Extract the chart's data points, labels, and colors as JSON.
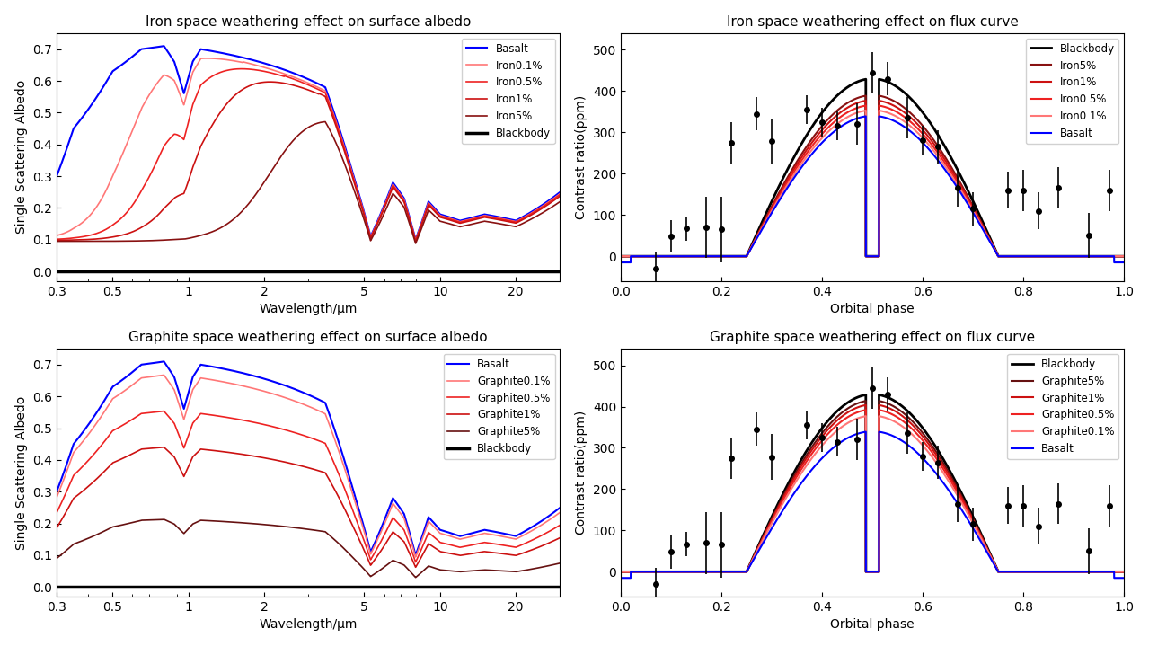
{
  "title_iron_albedo": "Iron space weathering effect on surface albedo",
  "title_iron_flux": "Iron space weathering effect on flux curve",
  "title_graphite_albedo": "Graphite space weathering effect on surface albedo",
  "title_graphite_flux": "Graphite space weathering effect on flux curve",
  "ylabel_albedo": "Single Scattering Albedo",
  "ylabel_flux": "Contrast ratio(ppm)",
  "xlabel_albedo": "Wavelength/μm",
  "xlabel_flux": "Orbital phase",
  "basalt_color": "#0000ff",
  "blackbody_color": "#000000",
  "iron_colors": [
    "#ff7777",
    "#ee2222",
    "#cc1111",
    "#881111"
  ],
  "graphite_colors": [
    "#ff7777",
    "#ee2222",
    "#cc1111",
    "#661111"
  ],
  "iron_labels_albedo": [
    "Basalt",
    "Iron0.1%",
    "Iron0.5%",
    "Iron1%",
    "Iron5%",
    "Blackbody"
  ],
  "graphite_labels_albedo": [
    "Basalt",
    "Graphite0.1%",
    "Graphite0.5%",
    "Graphite1%",
    "Graphite5%",
    "Blackbody"
  ],
  "iron_labels_flux": [
    "Blackbody",
    "Iron5%",
    "Iron1%",
    "Iron0.5%",
    "Iron0.1%",
    "Basalt"
  ],
  "graphite_labels_flux": [
    "Blackbody",
    "Graphite5%",
    "Graphite1%",
    "Graphite0.5%",
    "Graphite0.1%",
    "Basalt"
  ],
  "obs_phase": [
    0.07,
    0.1,
    0.13,
    0.17,
    0.2,
    0.22,
    0.27,
    0.3,
    0.37,
    0.4,
    0.43,
    0.47,
    0.5,
    0.53,
    0.57,
    0.6,
    0.63,
    0.67,
    0.7,
    0.77,
    0.8,
    0.83,
    0.87,
    0.93,
    0.97
  ],
  "obs_flux": [
    -30,
    48,
    67,
    70,
    65,
    275,
    345,
    278,
    355,
    325,
    315,
    320,
    445,
    430,
    335,
    280,
    265,
    165,
    115,
    160,
    160,
    110,
    165,
    50,
    160
  ],
  "obs_err": [
    40,
    40,
    30,
    75,
    80,
    50,
    40,
    55,
    35,
    35,
    35,
    50,
    50,
    40,
    50,
    35,
    40,
    45,
    40,
    45,
    50,
    45,
    50,
    55,
    50
  ]
}
